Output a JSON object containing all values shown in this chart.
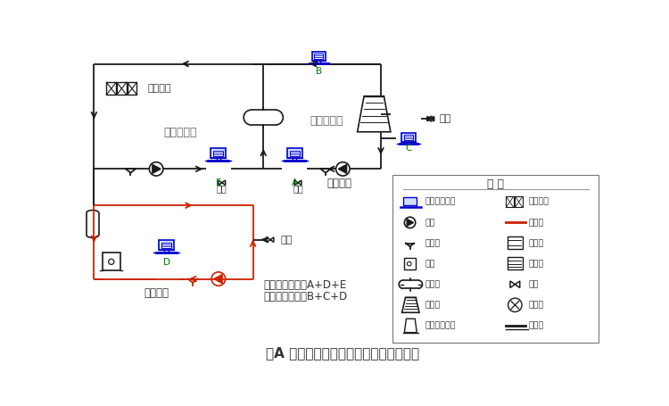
{
  "title": "图A 中央空调循环冷却水系统安装示意图",
  "bg_color": "#ffffff",
  "lc": "#1a1a1a",
  "lc_blue": "#0000cc",
  "lc_red": "#cc2200",
  "lc_gray": "#888888",
  "tc_dark": "#333333",
  "tc_green": "#008000",
  "legend_title": "图 例",
  "legend_left": [
    "高效扫频装置",
    "水泵",
    "过滤器",
    "锅炉",
    "换热器",
    "冷却塔",
    "双曲线冷却塔"
  ],
  "legend_right": [
    "风机盘管",
    "热水管",
    "补水筱",
    "热水筱",
    "阀门",
    "凝汽器",
    "集水池"
  ],
  "label_fengji": "风机盘管",
  "label_lengjing": "冷冻水系统",
  "label_lengque": "冷却水系统",
  "label_xia": "夏季运行",
  "label_dong": "冬季运行",
  "label_plan1": "冷却水方案一：A+D+E",
  "label_plan2": "冷却水方案二：B+C+D",
  "label_paiwu": "排污",
  "label_boshui": "补水"
}
